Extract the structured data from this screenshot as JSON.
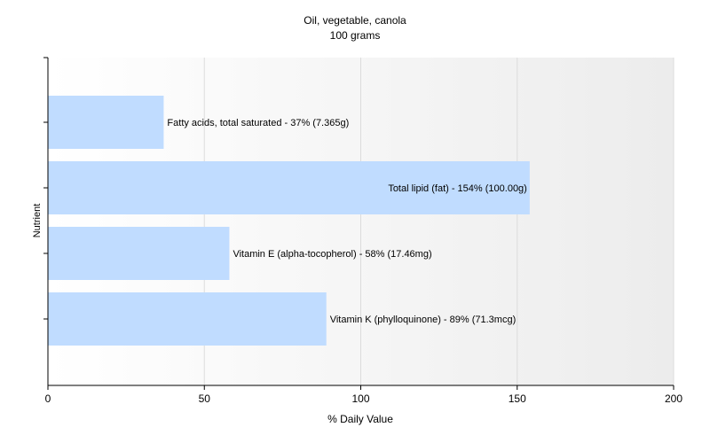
{
  "chart_data": {
    "type": "bar",
    "orientation": "horizontal",
    "title": "Oil, vegetable, canola",
    "subtitle": "100 grams",
    "xlabel": "% Daily Value",
    "ylabel": "Nutrient",
    "xlim": [
      0,
      200
    ],
    "xticks": [
      0,
      50,
      100,
      150,
      200
    ],
    "grid": true,
    "bar_color": "#c0dcff",
    "categories": [
      "Fatty acids, total saturated",
      "Total lipid (fat)",
      "Vitamin E (alpha-tocopherol)",
      "Vitamin K (phylloquinone)"
    ],
    "values": [
      37,
      154,
      58,
      89
    ],
    "labels": [
      "Fatty acids, total saturated - 37% (7.365g)",
      "Total lipid (fat) - 154% (100.00g)",
      "Vitamin E (alpha-tocopherol) - 58% (17.46mg)",
      "Vitamin K (phylloquinone) - 89% (71.3mcg)"
    ]
  }
}
